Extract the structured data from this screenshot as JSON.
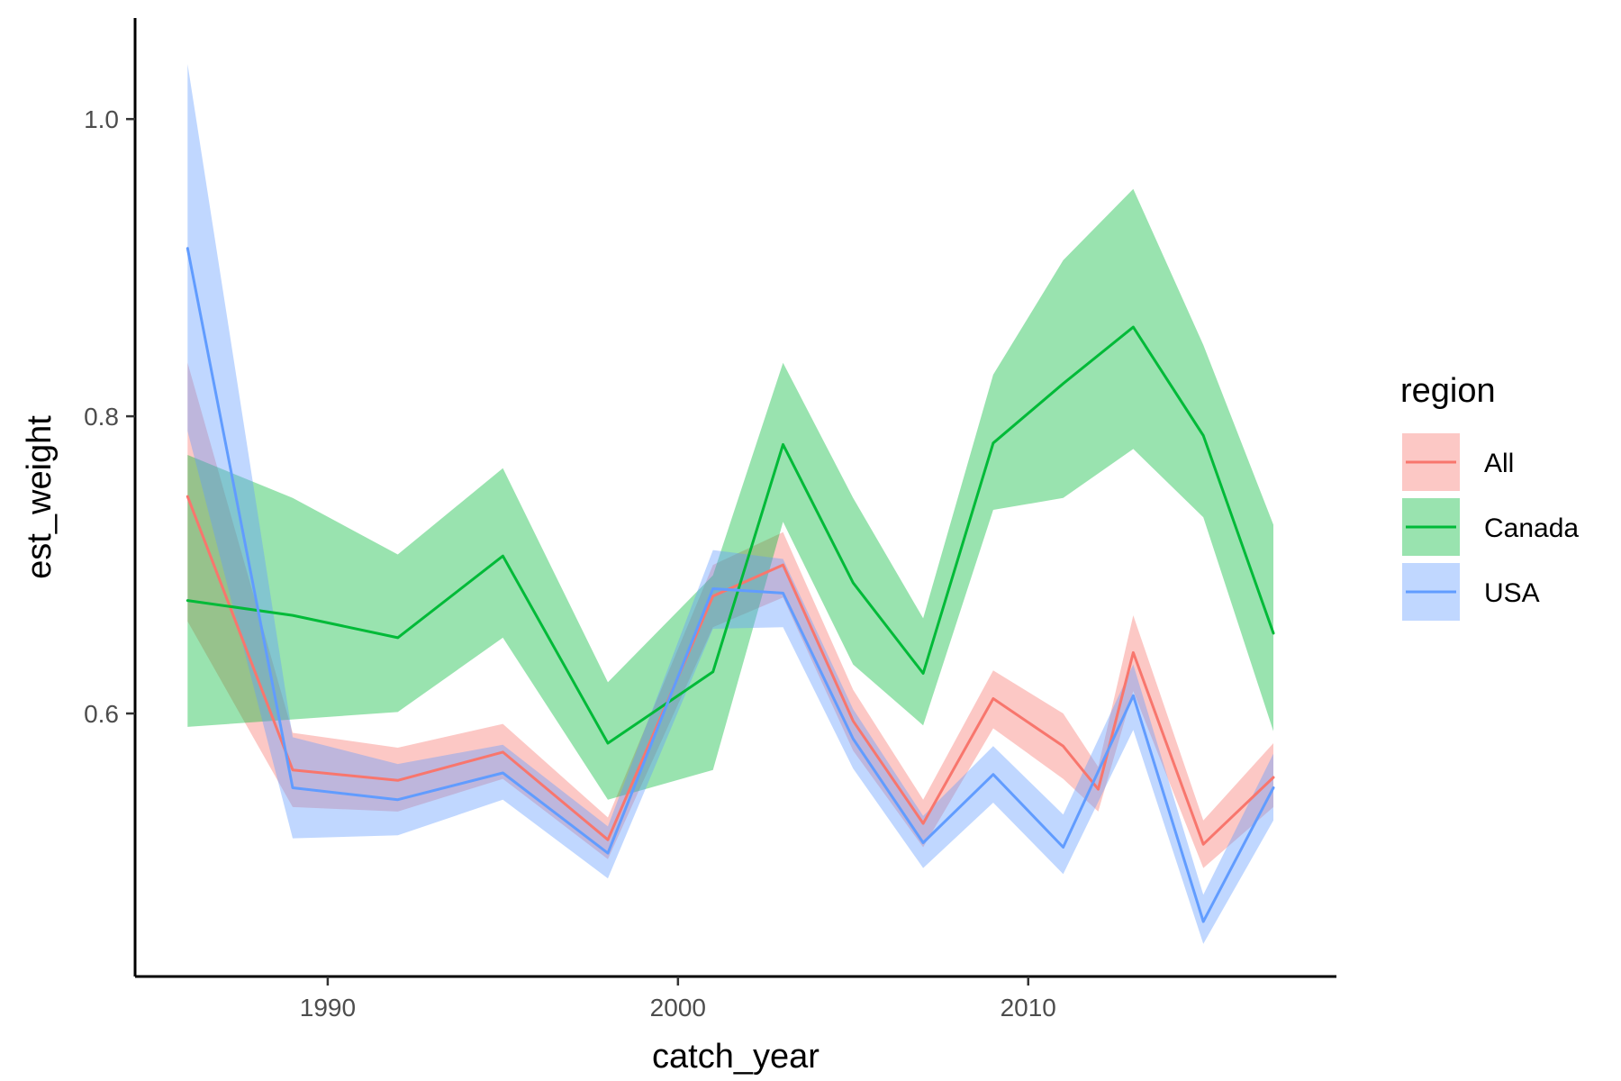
{
  "chart_data": {
    "type": "line",
    "xlabel": "catch_year",
    "ylabel": "est_weight",
    "xlim": [
      1984.5,
      2018.8
    ],
    "ylim": [
      0.423,
      1.068
    ],
    "x_ticks": [
      1990,
      2000,
      2010
    ],
    "y_ticks": [
      0.6,
      0.8,
      1.0
    ],
    "x_tick_labels": [
      "1990",
      "2000",
      "2010"
    ],
    "y_tick_labels": [
      "0.6",
      "0.8",
      "1.0"
    ],
    "grid": false,
    "legend": {
      "title": "region",
      "placement": "right"
    },
    "series": [
      {
        "name": "All",
        "color": "#F8766D",
        "x": [
          1986,
          1989,
          1992,
          1995,
          1998,
          2001,
          2003,
          2005,
          2007,
          2009,
          2011,
          2012,
          2013,
          2015,
          2017
        ],
        "y": [
          0.746,
          0.562,
          0.555,
          0.574,
          0.515,
          0.679,
          0.7,
          0.595,
          0.526,
          0.61,
          0.578,
          0.549,
          0.641,
          0.512,
          0.557
        ],
        "lower": [
          0.662,
          0.537,
          0.534,
          0.556,
          0.502,
          0.658,
          0.678,
          0.575,
          0.51,
          0.59,
          0.556,
          0.534,
          0.615,
          0.496,
          0.537
        ],
        "upper": [
          0.836,
          0.587,
          0.577,
          0.593,
          0.53,
          0.7,
          0.722,
          0.616,
          0.542,
          0.629,
          0.6,
          0.564,
          0.666,
          0.528,
          0.58
        ]
      },
      {
        "name": "Canada",
        "color": "#00BA38",
        "x": [
          1986,
          1989,
          1992,
          1995,
          1998,
          2001,
          2003,
          2005,
          2007,
          2009,
          2011,
          2013,
          2015,
          2017
        ],
        "y": [
          0.676,
          0.666,
          0.651,
          0.706,
          0.58,
          0.628,
          0.781,
          0.688,
          0.627,
          0.782,
          0.822,
          0.86,
          0.787,
          0.654
        ],
        "lower": [
          0.591,
          0.596,
          0.601,
          0.651,
          0.542,
          0.562,
          0.729,
          0.633,
          0.592,
          0.737,
          0.745,
          0.778,
          0.732,
          0.588
        ],
        "upper": [
          0.774,
          0.745,
          0.707,
          0.765,
          0.621,
          0.693,
          0.836,
          0.745,
          0.664,
          0.828,
          0.905,
          0.953,
          0.848,
          0.727
        ]
      },
      {
        "name": "USA",
        "color": "#619CFF",
        "x": [
          1986,
          1989,
          1992,
          1995,
          1998,
          2001,
          2003,
          2005,
          2007,
          2009,
          2011,
          2013,
          2015,
          2017
        ],
        "y": [
          0.913,
          0.55,
          0.542,
          0.56,
          0.506,
          0.684,
          0.681,
          0.583,
          0.513,
          0.559,
          0.51,
          0.612,
          0.46,
          0.55
        ],
        "lower": [
          0.79,
          0.516,
          0.518,
          0.542,
          0.489,
          0.657,
          0.658,
          0.563,
          0.496,
          0.54,
          0.492,
          0.589,
          0.445,
          0.528
        ],
        "upper": [
          1.037,
          0.584,
          0.566,
          0.579,
          0.524,
          0.71,
          0.704,
          0.603,
          0.531,
          0.578,
          0.532,
          0.633,
          0.478,
          0.573
        ]
      }
    ]
  }
}
